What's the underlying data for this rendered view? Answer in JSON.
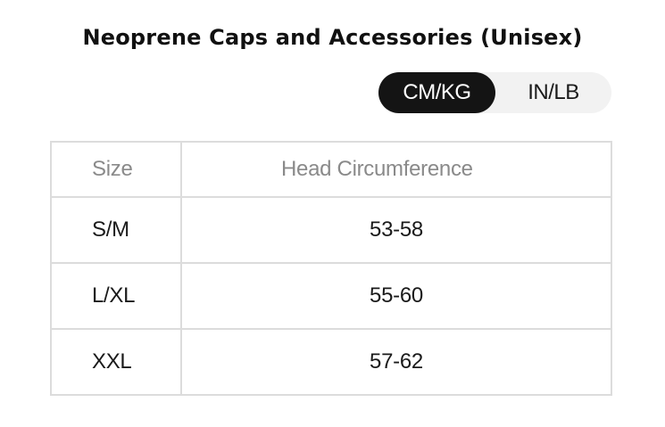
{
  "title": "Neoprene Caps and Accessories (Unisex)",
  "unit_toggle": {
    "options": [
      "CM/KG",
      "IN/LB"
    ],
    "selected": "CM/KG"
  },
  "table": {
    "headers": [
      "Size",
      "Head Circumference"
    ],
    "rows": [
      [
        "S/M",
        "53-58"
      ],
      [
        "L/XL",
        "55-60"
      ],
      [
        "XXL",
        "57-62"
      ]
    ]
  },
  "colors": {
    "active_toggle_bg": "#141414",
    "toggle_bg": "#f2f2f2",
    "table_border": "#dcdcdc",
    "header_text": "#8a8a8a"
  }
}
